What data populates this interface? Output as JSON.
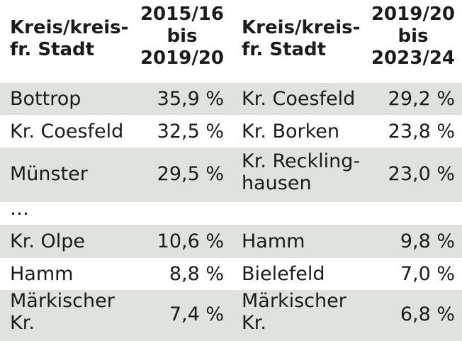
{
  "table": {
    "header": {
      "col1": [
        "Kreis/kreis-",
        "fr. Stadt"
      ],
      "col2": [
        "2015/16",
        "bis",
        "2019/20"
      ],
      "col3": [
        "Kreis/kreis-",
        "fr. Stadt"
      ],
      "col4": [
        "2019/20",
        "bis",
        "2023/24"
      ]
    },
    "rows": [
      {
        "left_name": [
          "Bottrop"
        ],
        "left_value": "35,9 %",
        "right_name": [
          "Kr. Coesfeld"
        ],
        "right_value": "29,2 %"
      },
      {
        "left_name": [
          "Kr. Coesfeld"
        ],
        "left_value": "32,5 %",
        "right_name": [
          "Kr. Borken"
        ],
        "right_value": "23,8 %"
      },
      {
        "left_name": [
          "Münster"
        ],
        "left_value": "29,5 %",
        "right_name": [
          "Kr. Reckling-",
          "hausen"
        ],
        "right_value": "23,0 %"
      },
      {
        "left_name": [
          "…"
        ],
        "left_value": "",
        "right_name": [
          ""
        ],
        "right_value": ""
      },
      {
        "left_name": [
          "Kr. Olpe"
        ],
        "left_value": "10,6 %",
        "right_name": [
          "Hamm"
        ],
        "right_value": "9,8 %"
      },
      {
        "left_name": [
          "Hamm"
        ],
        "left_value": "8,8 %",
        "right_name": [
          "Bielefeld"
        ],
        "right_value": "7,0 %"
      },
      {
        "left_name": [
          "Märkischer",
          "Kr."
        ],
        "left_value": "7,4 %",
        "right_name": [
          "Märkischer",
          "Kr."
        ],
        "right_value": "6,8 %"
      }
    ]
  }
}
